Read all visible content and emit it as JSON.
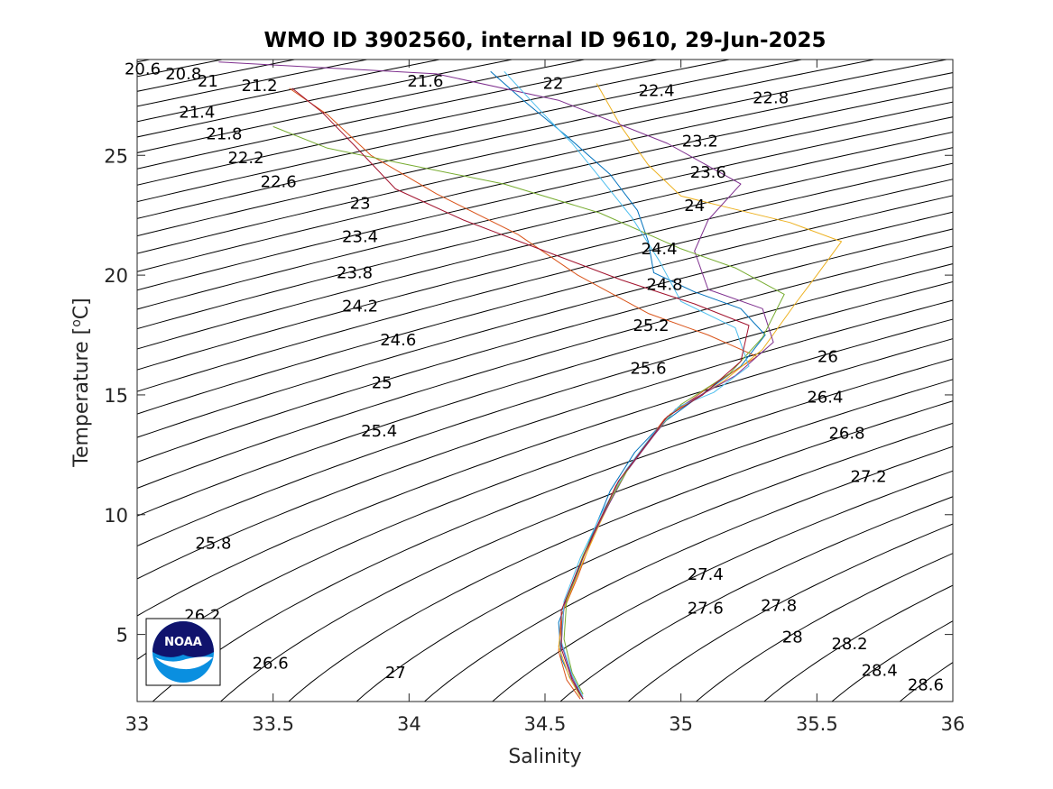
{
  "chart_data": {
    "type": "line",
    "title": "WMO ID 3902560, internal ID 9610, 29-Jun-2025",
    "xlabel": "Salinity",
    "ylabel_main": "Temperature [",
    "ylabel_sup": "o",
    "ylabel_end": "C]",
    "xlim": [
      33,
      36
    ],
    "ylim": [
      2.2,
      29
    ],
    "x_ticks": [
      33,
      33.5,
      34,
      34.5,
      35,
      35.5,
      36
    ],
    "x_tick_labels": [
      "33",
      "33.5",
      "34",
      "34.5",
      "35",
      "35.5",
      "36"
    ],
    "y_ticks": [
      5,
      10,
      15,
      20,
      25
    ],
    "y_tick_labels": [
      "5",
      "10",
      "15",
      "20",
      "25"
    ],
    "grid": false,
    "isopycnal_min": 20.6,
    "isopycnal_max": 28.6,
    "isopycnal_step": 0.2,
    "isopycnal_labels": [
      {
        "text": "20.6",
        "s": 33.02,
        "t": 28.6
      },
      {
        "text": "20.8",
        "s": 33.17,
        "t": 28.4
      },
      {
        "text": "21",
        "s": 33.26,
        "t": 28.1
      },
      {
        "text": "21.2",
        "s": 33.45,
        "t": 27.9
      },
      {
        "text": "21.4",
        "s": 33.22,
        "t": 26.8
      },
      {
        "text": "21.6",
        "s": 34.06,
        "t": 28.1
      },
      {
        "text": "21.8",
        "s": 33.32,
        "t": 25.9
      },
      {
        "text": "22",
        "s": 34.53,
        "t": 28.0
      },
      {
        "text": "22.2",
        "s": 33.4,
        "t": 24.9
      },
      {
        "text": "22.4",
        "s": 34.91,
        "t": 27.7
      },
      {
        "text": "22.6",
        "s": 33.52,
        "t": 23.9
      },
      {
        "text": "22.8",
        "s": 35.33,
        "t": 27.4
      },
      {
        "text": "23",
        "s": 33.82,
        "t": 23.0
      },
      {
        "text": "23.2",
        "s": 35.07,
        "t": 25.6
      },
      {
        "text": "23.4",
        "s": 33.82,
        "t": 21.6
      },
      {
        "text": "23.6",
        "s": 35.1,
        "t": 24.3
      },
      {
        "text": "23.8",
        "s": 33.8,
        "t": 20.1
      },
      {
        "text": "24",
        "s": 35.05,
        "t": 22.9
      },
      {
        "text": "24.2",
        "s": 33.82,
        "t": 18.7
      },
      {
        "text": "24.4",
        "s": 34.92,
        "t": 21.1
      },
      {
        "text": "24.6",
        "s": 33.96,
        "t": 17.3
      },
      {
        "text": "24.8",
        "s": 34.94,
        "t": 19.6
      },
      {
        "text": "25",
        "s": 33.9,
        "t": 15.5
      },
      {
        "text": "25.2",
        "s": 34.89,
        "t": 17.9
      },
      {
        "text": "25.4",
        "s": 33.89,
        "t": 13.5
      },
      {
        "text": "25.6",
        "s": 34.88,
        "t": 16.1
      },
      {
        "text": "25.8",
        "s": 33.28,
        "t": 8.8
      },
      {
        "text": "26",
        "s": 35.54,
        "t": 16.6
      },
      {
        "text": "26.2",
        "s": 33.24,
        "t": 5.8
      },
      {
        "text": "26.4",
        "s": 35.53,
        "t": 14.9
      },
      {
        "text": "26.6",
        "s": 33.49,
        "t": 3.8
      },
      {
        "text": "26.8",
        "s": 35.61,
        "t": 13.4
      },
      {
        "text": "27",
        "s": 33.95,
        "t": 3.4
      },
      {
        "text": "27.2",
        "s": 35.69,
        "t": 11.6
      },
      {
        "text": "27.4",
        "s": 35.09,
        "t": 7.5
      },
      {
        "text": "27.6",
        "s": 35.09,
        "t": 6.1
      },
      {
        "text": "27.8",
        "s": 35.36,
        "t": 6.2
      },
      {
        "text": "28",
        "s": 35.41,
        "t": 4.9
      },
      {
        "text": "28.2",
        "s": 35.62,
        "t": 4.6
      },
      {
        "text": "28.4",
        "s": 35.73,
        "t": 3.5
      },
      {
        "text": "28.6",
        "s": 35.9,
        "t": 2.9
      }
    ],
    "series": [
      {
        "color": "#0072BD",
        "points": [
          [
            34.64,
            2.3
          ],
          [
            34.6,
            3.0
          ],
          [
            34.56,
            4.0
          ],
          [
            34.55,
            5.5
          ],
          [
            34.6,
            7.0
          ],
          [
            34.66,
            8.8
          ],
          [
            34.74,
            11.0
          ],
          [
            34.83,
            12.6
          ],
          [
            34.93,
            13.8
          ],
          [
            35.05,
            14.8
          ],
          [
            35.22,
            16.2
          ],
          [
            35.31,
            17.5
          ],
          [
            35.22,
            18.6
          ],
          [
            35.05,
            19.3
          ],
          [
            34.9,
            20.1
          ],
          [
            34.88,
            21.4
          ],
          [
            34.84,
            22.7
          ],
          [
            34.74,
            24.2
          ],
          [
            34.58,
            25.8
          ],
          [
            34.42,
            27.3
          ],
          [
            34.3,
            28.5
          ]
        ]
      },
      {
        "color": "#D95319",
        "points": [
          [
            34.63,
            2.3
          ],
          [
            34.58,
            3.1
          ],
          [
            34.55,
            4.3
          ],
          [
            34.56,
            5.8
          ],
          [
            34.62,
            7.4
          ],
          [
            34.68,
            9.2
          ],
          [
            34.76,
            11.2
          ],
          [
            34.86,
            12.8
          ],
          [
            34.94,
            14.0
          ],
          [
            35.1,
            15.3
          ],
          [
            35.28,
            16.6
          ],
          [
            35.1,
            17.5
          ],
          [
            34.88,
            18.4
          ],
          [
            34.62,
            20.0
          ],
          [
            34.4,
            21.7
          ],
          [
            34.1,
            23.4
          ],
          [
            33.86,
            25.0
          ],
          [
            33.7,
            26.7
          ],
          [
            33.56,
            27.8
          ]
        ]
      },
      {
        "color": "#EDB120",
        "points": [
          [
            34.63,
            2.4
          ],
          [
            34.59,
            3.2
          ],
          [
            34.55,
            4.5
          ],
          [
            34.57,
            6.1
          ],
          [
            34.63,
            7.8
          ],
          [
            34.7,
            9.6
          ],
          [
            34.78,
            11.5
          ],
          [
            34.88,
            13.0
          ],
          [
            34.96,
            14.2
          ],
          [
            35.16,
            15.6
          ],
          [
            35.3,
            16.9
          ],
          [
            35.42,
            18.8
          ],
          [
            35.5,
            20.0
          ],
          [
            35.59,
            21.4
          ],
          [
            35.4,
            22.2
          ],
          [
            35.18,
            22.8
          ],
          [
            35.0,
            23.3
          ],
          [
            34.88,
            24.6
          ],
          [
            34.78,
            26.2
          ],
          [
            34.69,
            28.0
          ]
        ]
      },
      {
        "color": "#7E2F8E",
        "points": [
          [
            34.64,
            2.3
          ],
          [
            34.6,
            3.2
          ],
          [
            34.56,
            4.6
          ],
          [
            34.57,
            6.2
          ],
          [
            34.63,
            8.0
          ],
          [
            34.71,
            9.9
          ],
          [
            34.8,
            11.8
          ],
          [
            34.9,
            13.3
          ],
          [
            34.98,
            14.4
          ],
          [
            35.2,
            15.8
          ],
          [
            35.34,
            17.2
          ],
          [
            35.3,
            18.6
          ],
          [
            35.1,
            19.4
          ],
          [
            35.05,
            21.0
          ],
          [
            35.1,
            22.3
          ],
          [
            35.22,
            23.8
          ],
          [
            34.95,
            25.5
          ],
          [
            34.55,
            27.3
          ],
          [
            34.1,
            28.4
          ],
          [
            33.3,
            28.9
          ]
        ]
      },
      {
        "color": "#77AC30",
        "points": [
          [
            34.64,
            2.5
          ],
          [
            34.6,
            3.4
          ],
          [
            34.57,
            4.8
          ],
          [
            34.58,
            6.5
          ],
          [
            34.64,
            8.3
          ],
          [
            34.72,
            10.2
          ],
          [
            34.81,
            12.0
          ],
          [
            34.91,
            13.5
          ],
          [
            35.0,
            14.6
          ],
          [
            35.18,
            15.9
          ],
          [
            35.3,
            17.4
          ],
          [
            35.38,
            19.2
          ],
          [
            35.2,
            20.3
          ],
          [
            35.0,
            21.1
          ],
          [
            34.7,
            22.6
          ],
          [
            34.35,
            23.8
          ],
          [
            34.0,
            24.6
          ],
          [
            33.7,
            25.3
          ],
          [
            33.5,
            26.2
          ]
        ]
      },
      {
        "color": "#4DBEEE",
        "points": [
          [
            34.64,
            2.4
          ],
          [
            34.6,
            3.3
          ],
          [
            34.56,
            4.7
          ],
          [
            34.57,
            6.4
          ],
          [
            34.63,
            8.2
          ],
          [
            34.71,
            10.1
          ],
          [
            34.8,
            11.9
          ],
          [
            34.9,
            13.4
          ],
          [
            34.99,
            14.5
          ],
          [
            35.12,
            15.1
          ],
          [
            35.25,
            16.2
          ],
          [
            35.2,
            17.8
          ],
          [
            35.0,
            18.9
          ],
          [
            34.92,
            20.6
          ],
          [
            34.82,
            22.4
          ],
          [
            34.7,
            24.1
          ],
          [
            34.6,
            25.5
          ],
          [
            34.48,
            26.9
          ],
          [
            34.35,
            28.5
          ]
        ]
      },
      {
        "color": "#A2142F",
        "points": [
          [
            34.64,
            2.3
          ],
          [
            34.6,
            3.1
          ],
          [
            34.56,
            4.4
          ],
          [
            34.56,
            6.0
          ],
          [
            34.62,
            7.7
          ],
          [
            34.69,
            9.5
          ],
          [
            34.77,
            11.4
          ],
          [
            34.87,
            12.9
          ],
          [
            34.95,
            14.1
          ],
          [
            35.08,
            15.0
          ],
          [
            35.22,
            16.4
          ],
          [
            35.25,
            17.9
          ],
          [
            35.05,
            18.8
          ],
          [
            34.78,
            19.8
          ],
          [
            34.5,
            21.0
          ],
          [
            34.2,
            22.3
          ],
          [
            33.95,
            23.6
          ],
          [
            33.8,
            25.4
          ],
          [
            33.68,
            26.8
          ],
          [
            33.57,
            27.8
          ]
        ]
      }
    ]
  },
  "logo": {
    "text": "NOAA"
  }
}
